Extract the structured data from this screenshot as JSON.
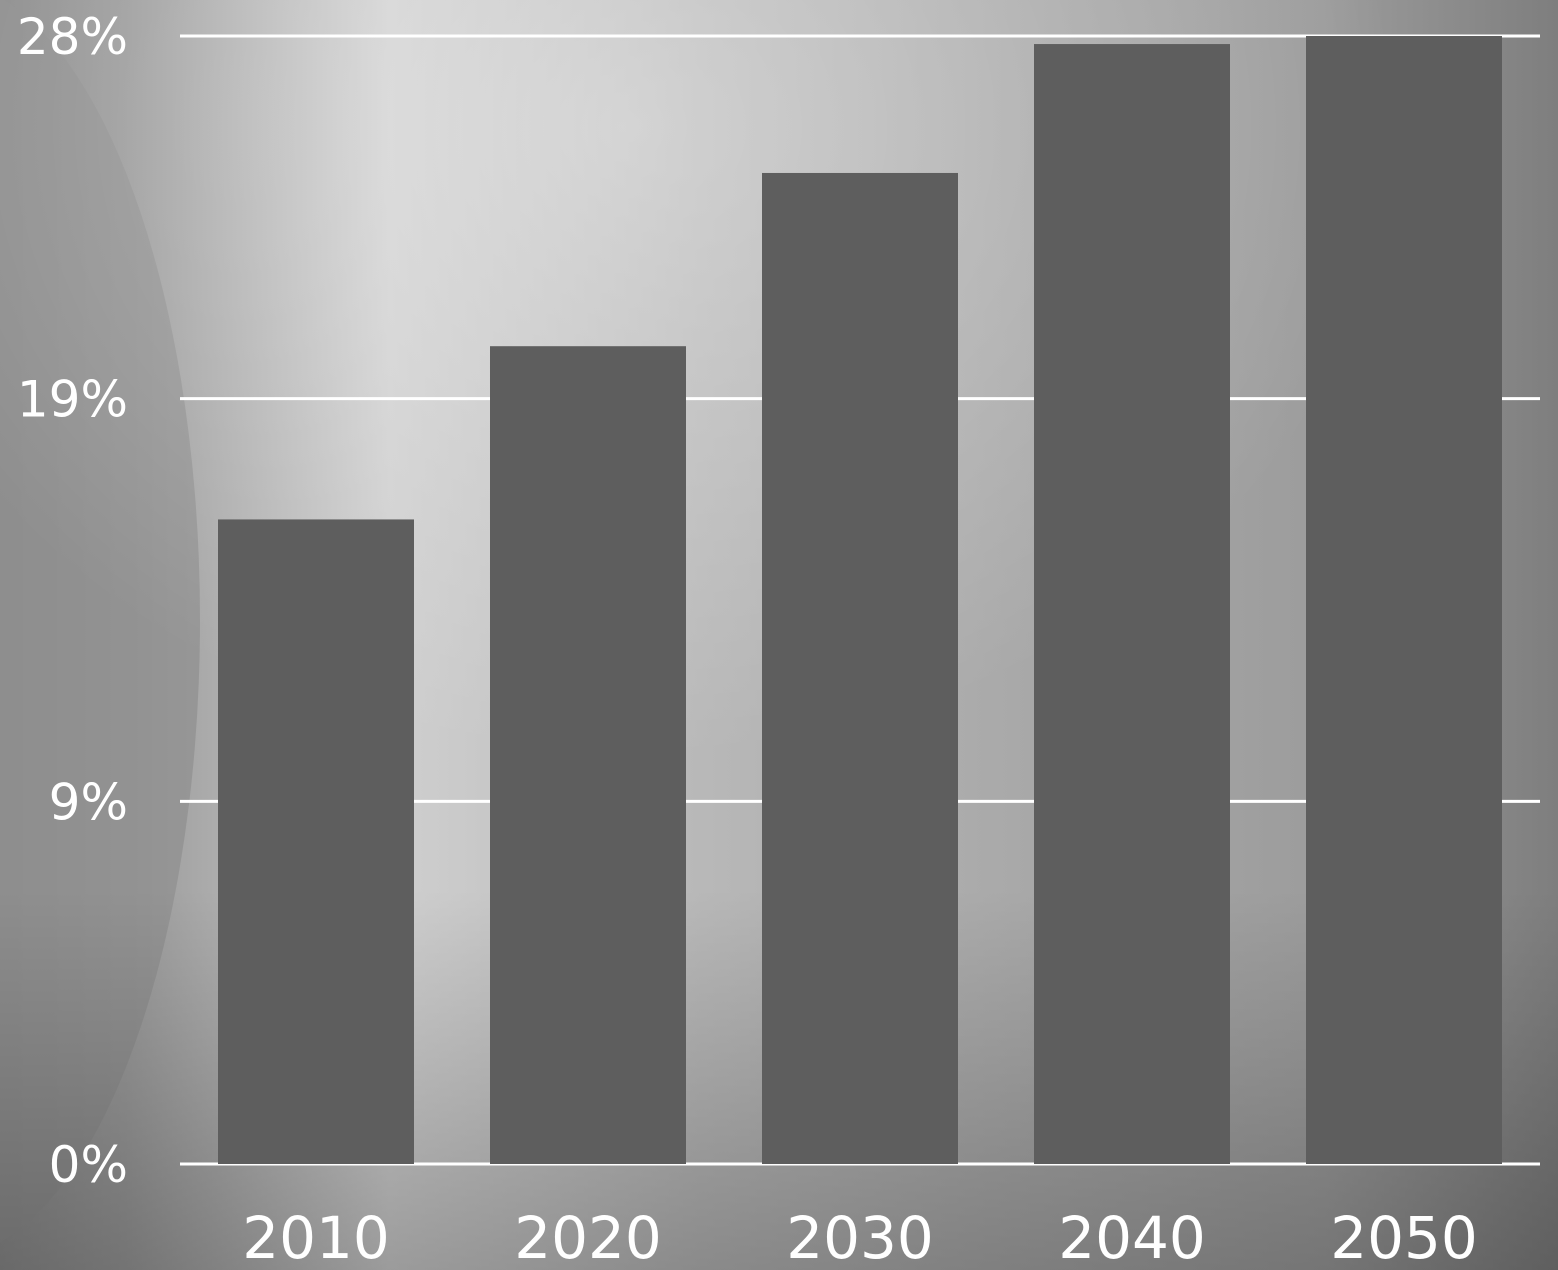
{
  "chart_data": {
    "type": "bar",
    "title": "",
    "xlabel": "",
    "ylabel": "",
    "categories": [
      "2010",
      "2020",
      "2030",
      "2040",
      "2050"
    ],
    "values": [
      16,
      20.3,
      24.6,
      27.8,
      28
    ],
    "ylim": [
      0,
      28
    ],
    "yticks": [
      0,
      9,
      19,
      28
    ],
    "ytick_labels": [
      "0%",
      "9%",
      "19%",
      "28%"
    ],
    "grid": true,
    "bar_color": "#5e5e5e",
    "grid_color": "#ffffff",
    "label_color": "#ffffff"
  }
}
